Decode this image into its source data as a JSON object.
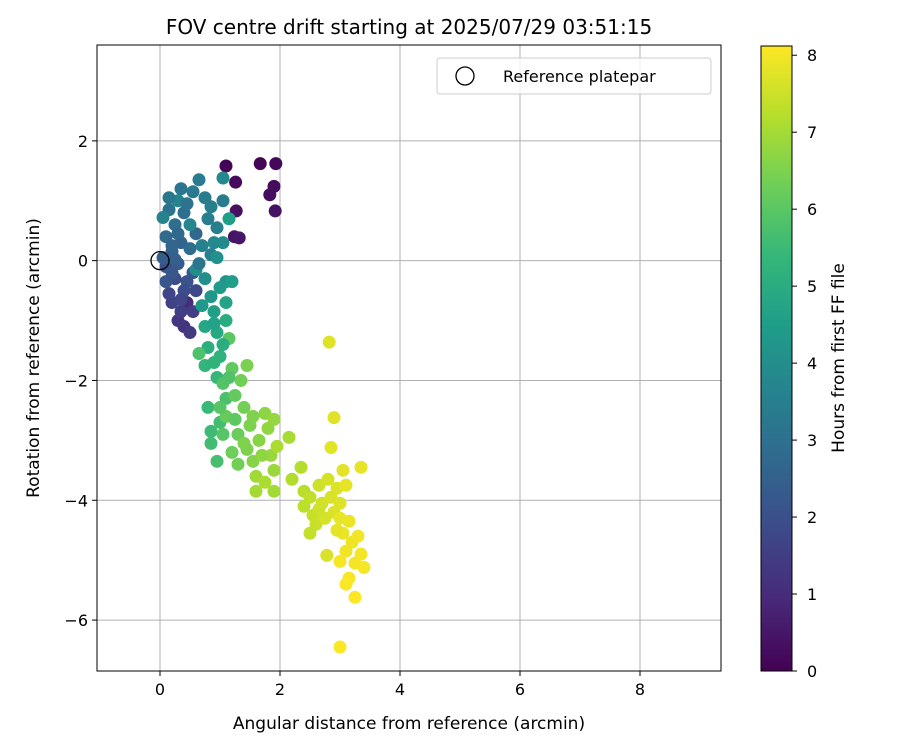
{
  "chart_data": {
    "type": "scatter",
    "title": "FOV centre drift starting at 2025/07/29 03:51:15",
    "xlabel": "Angular distance from reference (arcmin)",
    "ylabel": "Rotation from reference (arcmin)",
    "xlim": [
      -1.05,
      9.35
    ],
    "ylim": [
      -6.85,
      3.6
    ],
    "xticks": [
      0,
      2,
      4,
      6,
      8
    ],
    "xtick_labels": [
      "0",
      "2",
      "4",
      "6",
      "8"
    ],
    "yticks": [
      -6,
      -4,
      -2,
      0,
      2
    ],
    "ytick_labels": [
      "−6",
      "−4",
      "−2",
      "0",
      "2"
    ],
    "grid": true,
    "legend": {
      "position": "top-right",
      "entries": [
        {
          "label": "Reference platepar",
          "marker": "hollow-circle"
        }
      ]
    },
    "reference_point": {
      "x": 0,
      "y": 0
    },
    "colorbar": {
      "label": "Hours from first FF file",
      "colormap": "viridis",
      "range": [
        0,
        8.12
      ],
      "ticks": [
        0,
        1,
        2,
        3,
        4,
        5,
        6,
        7,
        8
      ],
      "tick_labels": [
        "0",
        "1",
        "2",
        "3",
        "4",
        "5",
        "6",
        "7",
        "8"
      ]
    },
    "colormap_stops": [
      "#440154",
      "#482878",
      "#3e4989",
      "#31688e",
      "#26828e",
      "#1f9e89",
      "#35b779",
      "#6ece58",
      "#b5de2b",
      "#fde725"
    ],
    "points": [
      {
        "x": 1.1,
        "y": 1.58,
        "h": 0.05
      },
      {
        "x": 1.67,
        "y": 1.62,
        "h": 0.1
      },
      {
        "x": 1.93,
        "y": 1.62,
        "h": 0.15
      },
      {
        "x": 1.26,
        "y": 1.31,
        "h": 0.2
      },
      {
        "x": 1.9,
        "y": 1.24,
        "h": 0.25
      },
      {
        "x": 1.83,
        "y": 1.1,
        "h": 0.3
      },
      {
        "x": 1.27,
        "y": 0.83,
        "h": 0.35
      },
      {
        "x": 1.92,
        "y": 0.83,
        "h": 0.4
      },
      {
        "x": 1.24,
        "y": 0.4,
        "h": 0.45
      },
      {
        "x": 1.32,
        "y": 0.38,
        "h": 0.5
      },
      {
        "x": 0.45,
        "y": -0.7,
        "h": 1.0
      },
      {
        "x": 0.4,
        "y": -1.1,
        "h": 1.2
      },
      {
        "x": 0.3,
        "y": -1.0,
        "h": 1.3
      },
      {
        "x": 0.5,
        "y": -1.2,
        "h": 1.4
      },
      {
        "x": 0.35,
        "y": -0.85,
        "h": 1.5
      },
      {
        "x": 0.2,
        "y": -0.7,
        "h": 1.6
      },
      {
        "x": 0.15,
        "y": -0.55,
        "h": 1.7
      },
      {
        "x": 0.6,
        "y": -0.5,
        "h": 1.8
      },
      {
        "x": 0.25,
        "y": -0.3,
        "h": 1.9
      },
      {
        "x": 0.1,
        "y": -0.1,
        "h": 2.0
      },
      {
        "x": 0.45,
        "y": -0.35,
        "h": 2.1
      },
      {
        "x": 0.55,
        "y": -0.2,
        "h": 2.2
      },
      {
        "x": 0.3,
        "y": -0.05,
        "h": 2.3
      },
      {
        "x": 0.05,
        "y": 0.05,
        "h": 2.4
      },
      {
        "x": 0.2,
        "y": 0.15,
        "h": 2.5
      },
      {
        "x": 0.35,
        "y": 0.3,
        "h": 2.6
      },
      {
        "x": 0.6,
        "y": 0.45,
        "h": 2.7
      },
      {
        "x": 0.1,
        "y": 0.4,
        "h": 2.8
      },
      {
        "x": 0.25,
        "y": 0.6,
        "h": 2.9
      },
      {
        "x": 0.4,
        "y": 0.8,
        "h": 3.0
      },
      {
        "x": 0.15,
        "y": 0.85,
        "h": 3.1
      },
      {
        "x": 0.35,
        "y": 1.2,
        "h": 3.2
      },
      {
        "x": 0.55,
        "y": 1.15,
        "h": 3.3
      },
      {
        "x": 0.65,
        "y": 1.35,
        "h": 3.35
      },
      {
        "x": 0.75,
        "y": 1.05,
        "h": 3.4
      },
      {
        "x": 0.8,
        "y": 0.7,
        "h": 3.45
      },
      {
        "x": 0.95,
        "y": 0.55,
        "h": 3.5
      },
      {
        "x": 0.7,
        "y": 0.25,
        "h": 3.55
      },
      {
        "x": 0.85,
        "y": 0.1,
        "h": 3.6
      },
      {
        "x": 0.05,
        "y": 0.72,
        "h": 3.65
      },
      {
        "x": 0.3,
        "y": 1.0,
        "h": 3.7
      },
      {
        "x": 0.5,
        "y": 0.6,
        "h": 3.75
      },
      {
        "x": 0.9,
        "y": 0.3,
        "h": 3.8
      },
      {
        "x": 1.05,
        "y": 1.38,
        "h": 3.85
      },
      {
        "x": 1.05,
        "y": 0.3,
        "h": 3.9
      },
      {
        "x": 0.6,
        "y": -0.15,
        "h": 3.95
      },
      {
        "x": 0.75,
        "y": -0.3,
        "h": 4.0
      },
      {
        "x": 0.95,
        "y": 0.05,
        "h": 4.1
      },
      {
        "x": 1.1,
        "y": -0.35,
        "h": 4.2
      },
      {
        "x": 0.85,
        "y": -0.6,
        "h": 4.3
      },
      {
        "x": 1.0,
        "y": -0.45,
        "h": 4.4
      },
      {
        "x": 1.2,
        "y": -0.35,
        "h": 4.5
      },
      {
        "x": 1.15,
        "y": 0.7,
        "h": 4.55
      },
      {
        "x": 0.9,
        "y": -0.85,
        "h": 4.6
      },
      {
        "x": 1.1,
        "y": -0.7,
        "h": 4.7
      },
      {
        "x": 0.75,
        "y": -1.1,
        "h": 4.8
      },
      {
        "x": 0.95,
        "y": -1.2,
        "h": 4.9
      },
      {
        "x": 1.1,
        "y": -1.0,
        "h": 5.0
      },
      {
        "x": 0.8,
        "y": -1.45,
        "h": 5.1
      },
      {
        "x": 1.0,
        "y": -1.6,
        "h": 5.2
      },
      {
        "x": 0.75,
        "y": -1.75,
        "h": 5.3
      },
      {
        "x": 0.95,
        "y": -1.95,
        "h": 5.4
      },
      {
        "x": 0.8,
        "y": -2.45,
        "h": 5.5
      },
      {
        "x": 0.85,
        "y": -2.85,
        "h": 5.55
      },
      {
        "x": 0.85,
        "y": -3.05,
        "h": 5.6
      },
      {
        "x": 1.0,
        "y": -2.7,
        "h": 5.65
      },
      {
        "x": 0.95,
        "y": -3.35,
        "h": 5.7
      },
      {
        "x": 1.1,
        "y": -2.3,
        "h": 5.75
      },
      {
        "x": 0.65,
        "y": -1.55,
        "h": 5.8
      },
      {
        "x": 1.05,
        "y": -2.05,
        "h": 5.9
      },
      {
        "x": 1.15,
        "y": -1.3,
        "h": 6.0
      },
      {
        "x": 1.2,
        "y": -1.8,
        "h": 6.1
      },
      {
        "x": 1.25,
        "y": -2.25,
        "h": 6.15
      },
      {
        "x": 1.1,
        "y": -2.6,
        "h": 6.2
      },
      {
        "x": 1.3,
        "y": -2.9,
        "h": 6.25
      },
      {
        "x": 1.2,
        "y": -3.2,
        "h": 6.3
      },
      {
        "x": 1.35,
        "y": -2.0,
        "h": 6.35
      },
      {
        "x": 1.4,
        "y": -2.45,
        "h": 6.4
      },
      {
        "x": 1.45,
        "y": -1.75,
        "h": 6.45
      },
      {
        "x": 1.5,
        "y": -2.75,
        "h": 6.5
      },
      {
        "x": 1.4,
        "y": -3.05,
        "h": 6.55
      },
      {
        "x": 1.55,
        "y": -3.35,
        "h": 6.6
      },
      {
        "x": 1.65,
        "y": -3.0,
        "h": 6.65
      },
      {
        "x": 1.75,
        "y": -2.55,
        "h": 6.7
      },
      {
        "x": 1.8,
        "y": -2.8,
        "h": 6.75
      },
      {
        "x": 1.9,
        "y": -2.65,
        "h": 6.8
      },
      {
        "x": 1.85,
        "y": -3.25,
        "h": 6.85
      },
      {
        "x": 1.9,
        "y": -3.5,
        "h": 6.9
      },
      {
        "x": 1.6,
        "y": -3.6,
        "h": 6.95
      },
      {
        "x": 1.9,
        "y": -3.85,
        "h": 7.0
      },
      {
        "x": 1.6,
        "y": -3.85,
        "h": 7.02
      },
      {
        "x": 2.15,
        "y": -2.95,
        "h": 7.05
      },
      {
        "x": 1.75,
        "y": -3.7,
        "h": 7.08
      },
      {
        "x": 1.95,
        "y": -3.1,
        "h": 7.1
      },
      {
        "x": 2.2,
        "y": -3.65,
        "h": 7.15
      },
      {
        "x": 2.35,
        "y": -3.45,
        "h": 7.2
      },
      {
        "x": 2.4,
        "y": -3.85,
        "h": 7.25
      },
      {
        "x": 2.4,
        "y": -4.1,
        "h": 7.3
      },
      {
        "x": 2.5,
        "y": -3.95,
        "h": 7.35
      },
      {
        "x": 2.55,
        "y": -4.25,
        "h": 7.4
      },
      {
        "x": 2.6,
        "y": -4.4,
        "h": 7.45
      },
      {
        "x": 2.65,
        "y": -3.75,
        "h": 7.5
      },
      {
        "x": 2.7,
        "y": -4.05,
        "h": 7.55
      },
      {
        "x": 2.75,
        "y": -4.3,
        "h": 7.6
      },
      {
        "x": 2.8,
        "y": -3.65,
        "h": 7.62
      },
      {
        "x": 2.78,
        "y": -4.92,
        "h": 7.64
      },
      {
        "x": 2.85,
        "y": -3.95,
        "h": 7.66
      },
      {
        "x": 2.9,
        "y": -4.2,
        "h": 7.68
      },
      {
        "x": 2.95,
        "y": -3.8,
        "h": 7.7
      },
      {
        "x": 3.0,
        "y": -4.05,
        "h": 7.72
      },
      {
        "x": 2.82,
        "y": -1.36,
        "h": 7.74
      },
      {
        "x": 2.9,
        "y": -2.62,
        "h": 7.76
      },
      {
        "x": 2.85,
        "y": -3.12,
        "h": 7.78
      },
      {
        "x": 3.05,
        "y": -3.5,
        "h": 7.8
      },
      {
        "x": 3.1,
        "y": -3.75,
        "h": 7.82
      },
      {
        "x": 3.35,
        "y": -3.45,
        "h": 7.84
      },
      {
        "x": 3.0,
        "y": -4.3,
        "h": 7.86
      },
      {
        "x": 3.05,
        "y": -4.55,
        "h": 7.88
      },
      {
        "x": 3.15,
        "y": -4.35,
        "h": 7.9
      },
      {
        "x": 3.2,
        "y": -4.7,
        "h": 7.92
      },
      {
        "x": 3.1,
        "y": -4.85,
        "h": 7.94
      },
      {
        "x": 3.3,
        "y": -4.6,
        "h": 7.96
      },
      {
        "x": 3.25,
        "y": -5.05,
        "h": 7.98
      },
      {
        "x": 3.35,
        "y": -4.9,
        "h": 8.0
      },
      {
        "x": 3.4,
        "y": -5.12,
        "h": 8.02
      },
      {
        "x": 3.15,
        "y": -5.3,
        "h": 8.04
      },
      {
        "x": 3.0,
        "y": -5.02,
        "h": 8.06
      },
      {
        "x": 3.1,
        "y": -5.4,
        "h": 8.08
      },
      {
        "x": 3.25,
        "y": -5.62,
        "h": 8.1
      },
      {
        "x": 3.0,
        "y": -6.45,
        "h": 8.12
      },
      {
        "x": 0.2,
        "y": 0.25,
        "h": 2.65
      },
      {
        "x": 0.3,
        "y": 0.45,
        "h": 2.75
      },
      {
        "x": 0.5,
        "y": 0.2,
        "h": 2.85
      },
      {
        "x": 0.45,
        "y": 0.95,
        "h": 3.05
      },
      {
        "x": 0.2,
        "y": -0.2,
        "h": 2.2
      },
      {
        "x": 0.4,
        "y": -0.5,
        "h": 1.95
      },
      {
        "x": 0.55,
        "y": -0.85,
        "h": 1.55
      },
      {
        "x": 0.65,
        "y": -0.05,
        "h": 3.15
      },
      {
        "x": 0.15,
        "y": 1.05,
        "h": 3.25
      },
      {
        "x": 0.7,
        "y": -0.75,
        "h": 4.35
      },
      {
        "x": 0.9,
        "y": -1.05,
        "h": 4.65
      },
      {
        "x": 1.05,
        "y": -1.4,
        "h": 5.05
      },
      {
        "x": 0.9,
        "y": -1.7,
        "h": 5.25
      },
      {
        "x": 1.15,
        "y": -1.95,
        "h": 5.85
      },
      {
        "x": 1.0,
        "y": -2.45,
        "h": 5.95
      },
      {
        "x": 1.25,
        "y": -2.65,
        "h": 6.05
      },
      {
        "x": 1.05,
        "y": -2.9,
        "h": 5.95
      },
      {
        "x": 1.3,
        "y": -3.4,
        "h": 6.35
      },
      {
        "x": 1.45,
        "y": -3.15,
        "h": 6.5
      },
      {
        "x": 1.7,
        "y": -3.25,
        "h": 6.75
      },
      {
        "x": 1.55,
        "y": -2.6,
        "h": 6.55
      },
      {
        "x": 2.5,
        "y": -4.55,
        "h": 7.4
      },
      {
        "x": 2.65,
        "y": -4.15,
        "h": 7.55
      },
      {
        "x": 2.95,
        "y": -4.5,
        "h": 7.85
      },
      {
        "x": 1.05,
        "y": 1.0,
        "h": 3.35
      },
      {
        "x": 0.85,
        "y": 0.9,
        "h": 3.5
      },
      {
        "x": 0.25,
        "y": 0.02,
        "h": 2.45
      },
      {
        "x": 0.1,
        "y": -0.35,
        "h": 2.15
      },
      {
        "x": 0.35,
        "y": -0.65,
        "h": 1.75
      }
    ]
  }
}
